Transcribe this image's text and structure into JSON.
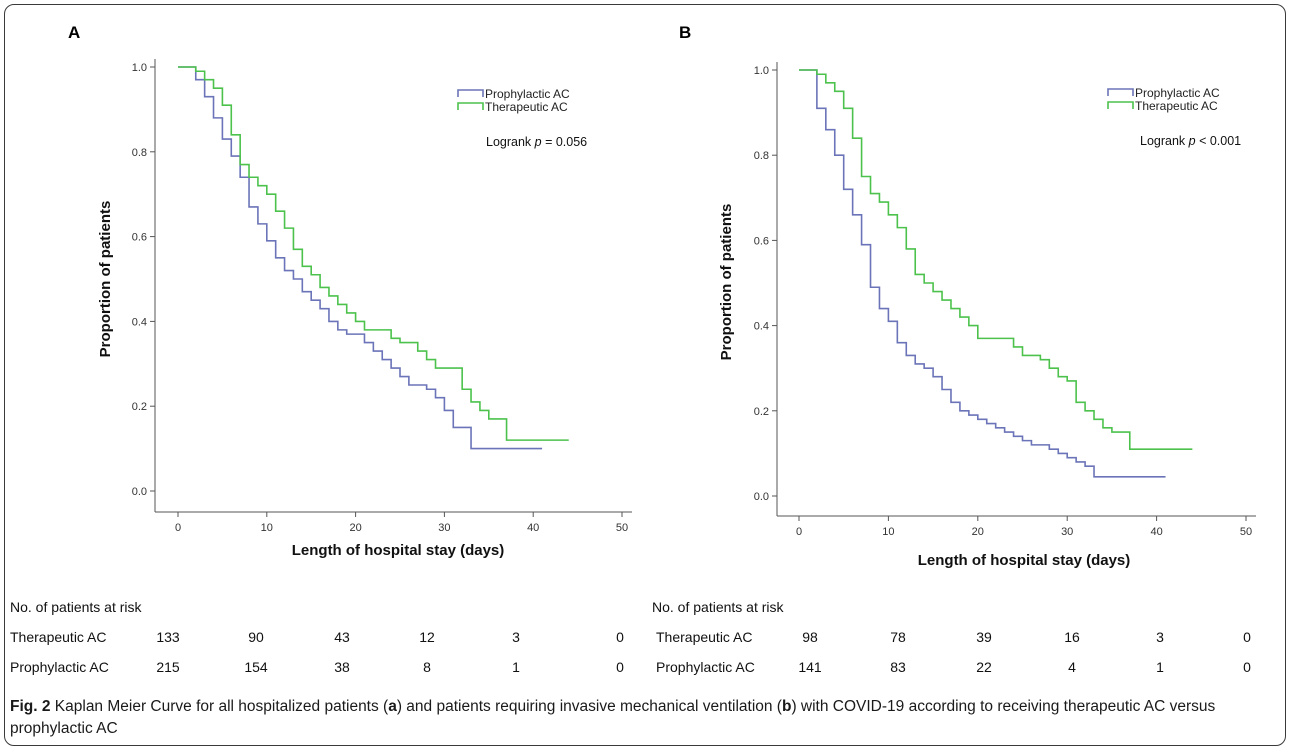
{
  "colors": {
    "prophylactic": "#6b74b8",
    "therapeutic": "#4cc24c"
  },
  "chart_data": [
    {
      "type": "line",
      "panel_label": "A",
      "xlabel": "Length of hospital stay (days)",
      "ylabel": "Proportion of patients",
      "xlim": [
        0,
        50
      ],
      "ylim": [
        0,
        1
      ],
      "xticks": [
        0,
        10,
        20,
        30,
        40,
        50
      ],
      "yticks": [
        0.0,
        0.2,
        0.4,
        0.6,
        0.8,
        1.0
      ],
      "ytick_labels": [
        "0.0",
        "0.2",
        "0.4",
        "0.6",
        "0.8",
        "1.0"
      ],
      "legend_position": "top-right",
      "annotation": {
        "prefix": "Logrank ",
        "italic": "p",
        "suffix": " = 0.056"
      },
      "series": [
        {
          "name": "Prophylactic AC",
          "color_key": "prophylactic",
          "step": true,
          "x": [
            0,
            2,
            3,
            4,
            5,
            6,
            7,
            8,
            9,
            10,
            11,
            12,
            13,
            14,
            15,
            16,
            17,
            18,
            19,
            21,
            22,
            23,
            24,
            25,
            26,
            28,
            29,
            30,
            31,
            33,
            41
          ],
          "y": [
            1.0,
            0.97,
            0.93,
            0.88,
            0.83,
            0.79,
            0.74,
            0.67,
            0.63,
            0.59,
            0.55,
            0.52,
            0.5,
            0.47,
            0.45,
            0.43,
            0.4,
            0.38,
            0.37,
            0.35,
            0.33,
            0.31,
            0.29,
            0.27,
            0.25,
            0.24,
            0.22,
            0.19,
            0.15,
            0.1,
            0.1
          ]
        },
        {
          "name": "Therapeutic AC",
          "color_key": "therapeutic",
          "step": true,
          "x": [
            0,
            2,
            3,
            4,
            5,
            6,
            7,
            8,
            9,
            10,
            11,
            12,
            13,
            14,
            15,
            16,
            17,
            18,
            19,
            20,
            21,
            24,
            25,
            27,
            28,
            29,
            32,
            33,
            34,
            35,
            37,
            44
          ],
          "y": [
            1.0,
            0.99,
            0.97,
            0.95,
            0.91,
            0.84,
            0.77,
            0.74,
            0.72,
            0.7,
            0.66,
            0.62,
            0.57,
            0.53,
            0.51,
            0.48,
            0.46,
            0.44,
            0.42,
            0.4,
            0.38,
            0.36,
            0.35,
            0.33,
            0.31,
            0.29,
            0.24,
            0.21,
            0.19,
            0.17,
            0.12,
            0.12
          ]
        }
      ],
      "risk_table": {
        "title": "No. of patients at risk",
        "rows": [
          {
            "label": "Therapeutic AC",
            "values": [
              "133",
              "90",
              "43",
              "12",
              "3",
              "0"
            ]
          },
          {
            "label": "Prophylactic AC",
            "values": [
              "215",
              "154",
              "38",
              "8",
              "1",
              "0"
            ]
          }
        ]
      }
    },
    {
      "type": "line",
      "panel_label": "B",
      "xlabel": "Length of hospital stay (days)",
      "ylabel": "Proportion of patients",
      "xlim": [
        0,
        50
      ],
      "ylim": [
        0,
        1
      ],
      "xticks": [
        0,
        10,
        20,
        30,
        40,
        50
      ],
      "yticks": [
        0.0,
        0.2,
        0.4,
        0.6,
        0.8,
        1.0
      ],
      "ytick_labels": [
        "0.0",
        "0.2",
        "0.4",
        "0.6",
        "0.8",
        "1.0"
      ],
      "legend_position": "top-right",
      "annotation": {
        "prefix": "Logrank ",
        "italic": "p",
        "suffix": " < 0.001"
      },
      "series": [
        {
          "name": "Prophylactic AC",
          "color_key": "prophylactic",
          "step": true,
          "x": [
            0,
            2,
            3,
            4,
            5,
            6,
            7,
            8,
            9,
            10,
            11,
            12,
            13,
            14,
            15,
            16,
            17,
            18,
            19,
            20,
            21,
            22,
            23,
            24,
            25,
            26,
            28,
            29,
            30,
            31,
            32,
            33,
            41
          ],
          "y": [
            1.0,
            0.91,
            0.86,
            0.8,
            0.72,
            0.66,
            0.59,
            0.49,
            0.44,
            0.41,
            0.36,
            0.33,
            0.31,
            0.3,
            0.28,
            0.25,
            0.22,
            0.2,
            0.19,
            0.18,
            0.17,
            0.16,
            0.15,
            0.14,
            0.13,
            0.12,
            0.11,
            0.1,
            0.09,
            0.08,
            0.07,
            0.045,
            0.045
          ]
        },
        {
          "name": "Therapeutic AC",
          "color_key": "therapeutic",
          "step": true,
          "x": [
            0,
            2,
            3,
            4,
            5,
            6,
            7,
            8,
            9,
            10,
            11,
            12,
            13,
            14,
            15,
            16,
            17,
            18,
            19,
            20,
            24,
            25,
            27,
            28,
            29,
            30,
            31,
            32,
            33,
            34,
            35,
            37,
            44
          ],
          "y": [
            1.0,
            0.99,
            0.97,
            0.95,
            0.91,
            0.84,
            0.75,
            0.71,
            0.69,
            0.66,
            0.63,
            0.58,
            0.52,
            0.5,
            0.48,
            0.46,
            0.44,
            0.42,
            0.4,
            0.37,
            0.35,
            0.33,
            0.32,
            0.3,
            0.28,
            0.27,
            0.22,
            0.2,
            0.18,
            0.16,
            0.15,
            0.11,
            0.11
          ]
        }
      ],
      "risk_table": {
        "title": "No. of patients at risk",
        "rows": [
          {
            "label": "Therapeutic AC",
            "values": [
              "98",
              "78",
              "39",
              "16",
              "3",
              "0"
            ]
          },
          {
            "label": "Prophylactic AC",
            "values": [
              "141",
              "83",
              "22",
              "4",
              "1",
              "0"
            ]
          }
        ]
      }
    }
  ],
  "caption": {
    "fig_label": "Fig. 2",
    "parts": [
      {
        "text": " Kaplan Meier Curve for all hospitalized patients ("
      },
      {
        "text": "a",
        "bold": true
      },
      {
        "text": ") and patients requiring invasive mechanical ventilation ("
      },
      {
        "text": "b",
        "bold": true
      },
      {
        "text": ") with COVID-19 according to receiving therapeutic AC versus prophylactic AC"
      }
    ]
  }
}
